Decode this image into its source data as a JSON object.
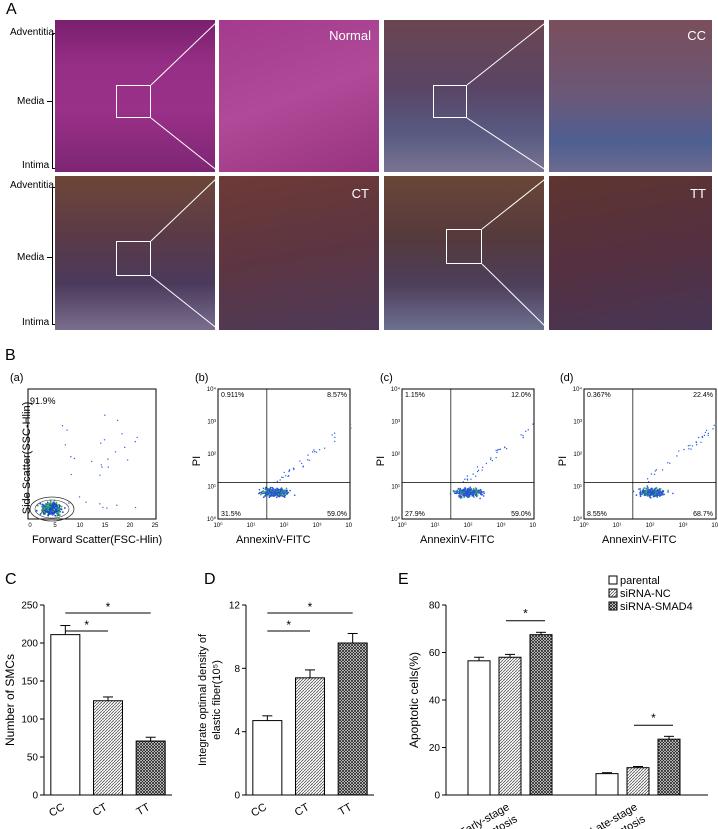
{
  "panel_a": {
    "letter": "A",
    "layers": {
      "adventitia": "Adventitia",
      "media": "Media",
      "intima": "Intima"
    },
    "tags": {
      "normal": "Normal",
      "cc": "CC",
      "ct": "CT",
      "tt": "TT"
    },
    "colors": {
      "normal": "#8a2a78",
      "cc": "#6a4a5a",
      "ct": "#5a3636",
      "tt": "#4a2e2e"
    }
  },
  "panel_b": {
    "letter": "B",
    "sub_a": {
      "tag": "(a)",
      "pct": "91.9%",
      "xlabel": "Forward Scatter(FSC-Hlin)",
      "ylabel": "Side Scatter(SSC-Hlin)"
    },
    "sub_b": {
      "tag": "(b)",
      "ul": "0.911%",
      "ur": "8.57%",
      "ll": "31.5%",
      "lr": "59.0%"
    },
    "sub_c": {
      "tag": "(c)",
      "ul": "1.15%",
      "ur": "12.0%",
      "ll": "27.9%",
      "lr": "59.0%"
    },
    "sub_d": {
      "tag": "(d)",
      "ul": "0.367%",
      "ur": "22.4%",
      "ll": "8.55%",
      "lr": "68.7%"
    },
    "xlabel": "AnnexinV-FITC",
    "ylabel": "PI",
    "scatter_ticks": [
      "0",
      "5",
      "10",
      "15",
      "20",
      "25"
    ],
    "log_ticks": [
      "10⁰",
      "10¹",
      "10²",
      "10³",
      "10⁴"
    ]
  },
  "chart_data": [
    {
      "type": "bar",
      "panel": "C",
      "categories": [
        "CC",
        "CT",
        "TT"
      ],
      "values": [
        211,
        124,
        71
      ],
      "errors": [
        12,
        5,
        5
      ],
      "ylabel": "Number of SMCs",
      "ylim": [
        0,
        250
      ],
      "yticks": [
        "0",
        "50",
        "100",
        "150",
        "200",
        "250"
      ],
      "significance": [
        "*",
        "*"
      ]
    },
    {
      "type": "bar",
      "panel": "D",
      "categories": [
        "CC",
        "CT",
        "TT"
      ],
      "values": [
        4.7,
        7.4,
        9.6
      ],
      "errors": [
        0.3,
        0.5,
        0.6
      ],
      "ylabel": "Integrate optimal density of elastic fiber(10⁵)",
      "ylabel_line1": "Integrate optimal density of",
      "ylabel_line2": "elastic fiber(10⁵)",
      "ylim": [
        0,
        12
      ],
      "yticks": [
        "0",
        "4",
        "8",
        "12"
      ],
      "significance": [
        "*",
        "*"
      ]
    },
    {
      "type": "bar",
      "panel": "E",
      "categories": [
        "Early-stage apoptosis",
        "Late-stage apoptosis"
      ],
      "cat_line1": [
        "Early-stage",
        "Late-stage"
      ],
      "cat_line2": [
        "apoptosis",
        "apoptosis"
      ],
      "series": [
        {
          "name": "parental",
          "values": [
            56.5,
            9.0
          ],
          "errors": [
            1.5,
            0.4
          ]
        },
        {
          "name": "siRNA-NC",
          "values": [
            58.0,
            11.5
          ],
          "errors": [
            1.2,
            0.5
          ]
        },
        {
          "name": "siRNA-SMAD4",
          "values": [
            67.5,
            23.5
          ],
          "errors": [
            1.0,
            1.2
          ]
        }
      ],
      "ylabel": "Apoptotic cells(%)",
      "ylim": [
        0,
        80
      ],
      "yticks": [
        "0",
        "20",
        "40",
        "60",
        "80"
      ],
      "legend_position": "top-right",
      "significance": [
        "*",
        "*"
      ]
    }
  ],
  "letters": {
    "c": "C",
    "d": "D",
    "e": "E"
  }
}
